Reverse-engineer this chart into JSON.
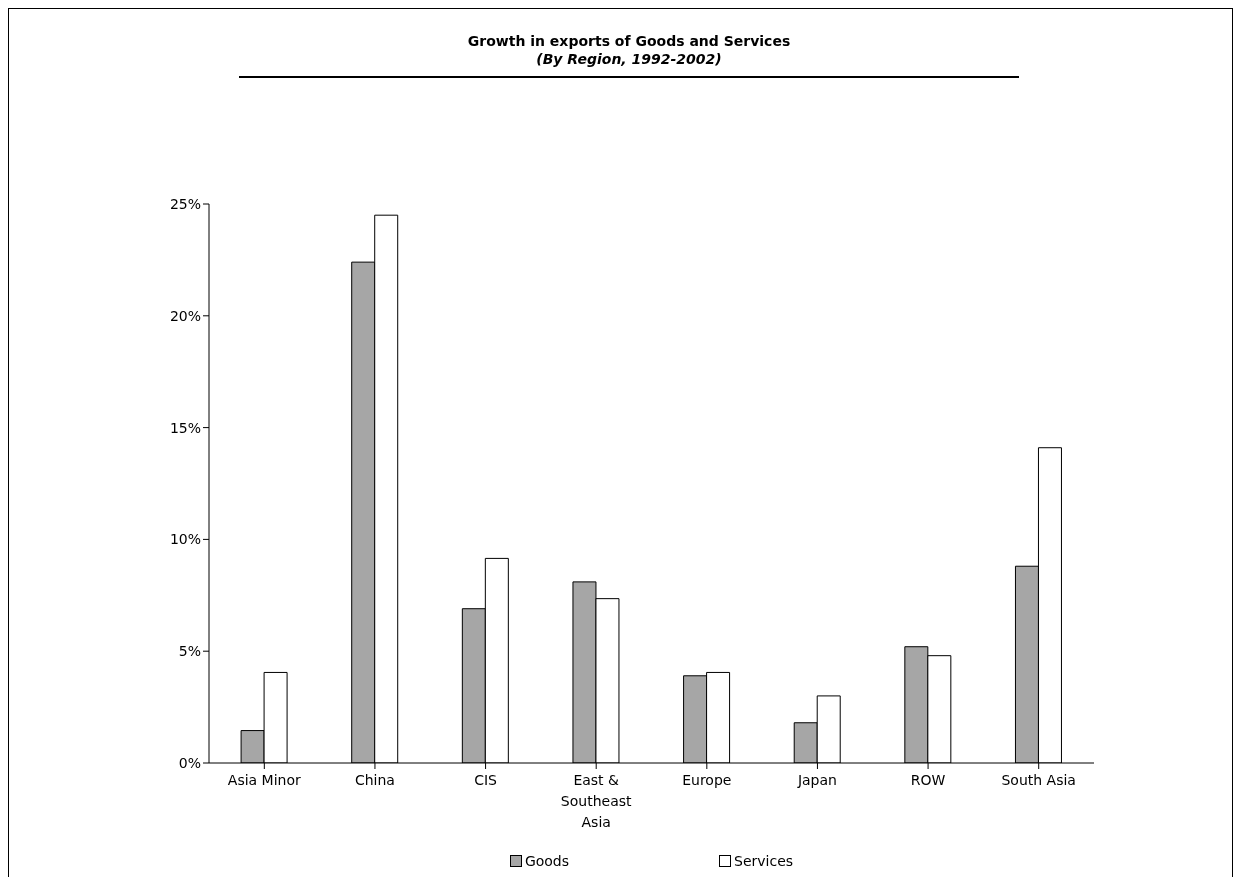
{
  "chart_data": {
    "type": "bar",
    "title": "Growth in exports of Goods and Services",
    "subtitle": "(By Region, 1992-2002)",
    "categories": [
      "Asia Minor",
      "China",
      "CIS",
      "East & Southeast Asia",
      "Europe",
      "Japan",
      "ROW",
      "South Asia"
    ],
    "series": [
      {
        "name": "Goods",
        "color": "#a6a6a6",
        "values": [
          1.45,
          22.4,
          6.9,
          8.1,
          3.9,
          1.8,
          5.2,
          8.8
        ]
      },
      {
        "name": "Services",
        "color": "#ffffff",
        "values": [
          4.05,
          24.5,
          9.15,
          7.35,
          4.05,
          3.0,
          4.8,
          14.1
        ]
      }
    ],
    "ylim": [
      0,
      25
    ],
    "yticks": [
      {
        "value": 0,
        "label": "0%"
      },
      {
        "value": 5,
        "label": "5%"
      },
      {
        "value": 10,
        "label": "10%"
      },
      {
        "value": 15,
        "label": "15%"
      },
      {
        "value": 20,
        "label": "20%"
      },
      {
        "value": 25,
        "label": "25%"
      }
    ],
    "grid": false,
    "legend": "bottom"
  }
}
